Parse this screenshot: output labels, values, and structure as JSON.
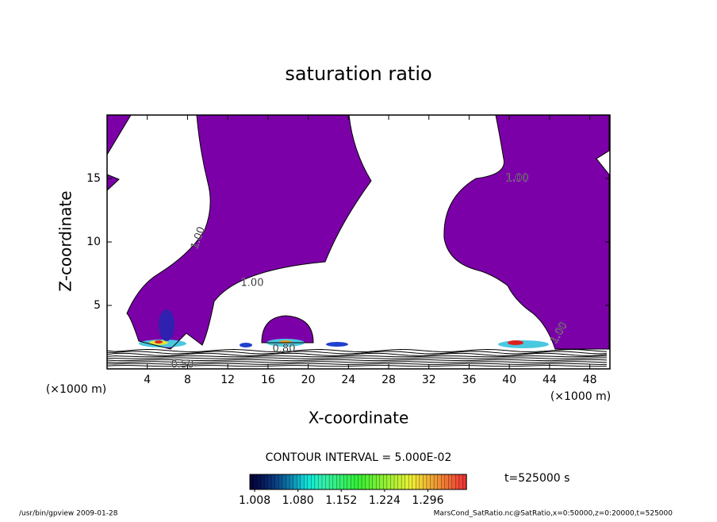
{
  "chart_data": {
    "type": "contour",
    "title": "saturation ratio",
    "x_label": "X-coordinate",
    "y_label": "Z-coordinate",
    "x_unit": "(×1000 m)",
    "y_unit": "(×1000 m)",
    "xlim": [
      0,
      50
    ],
    "ylim": [
      0,
      20
    ],
    "xticks": [
      4,
      8,
      12,
      16,
      20,
      24,
      28,
      32,
      36,
      40,
      44,
      48
    ],
    "yticks": [
      5,
      10,
      15
    ],
    "contour_labels": [
      "1.00",
      "1.00",
      "1.00",
      "1.00",
      "0.50",
      "0.80"
    ],
    "contour_interval": "CONTOUR INTERVAL = 5.000E-02",
    "time_label": "t=525000 s",
    "fill_color": "#7b00a8",
    "clim": [
      1.0,
      1.36
    ],
    "cticks": [
      1.008,
      {
        "value": 1.08,
        "label": "1.080"
      },
      1.152,
      1.224,
      1.296
    ],
    "footer_left": "/usr/bin/gpview  2009-01-28",
    "footer_right": "MarsCond_SatRatio.nc@SatRatio,x=0:50000,z=0:20000,t=525000"
  }
}
